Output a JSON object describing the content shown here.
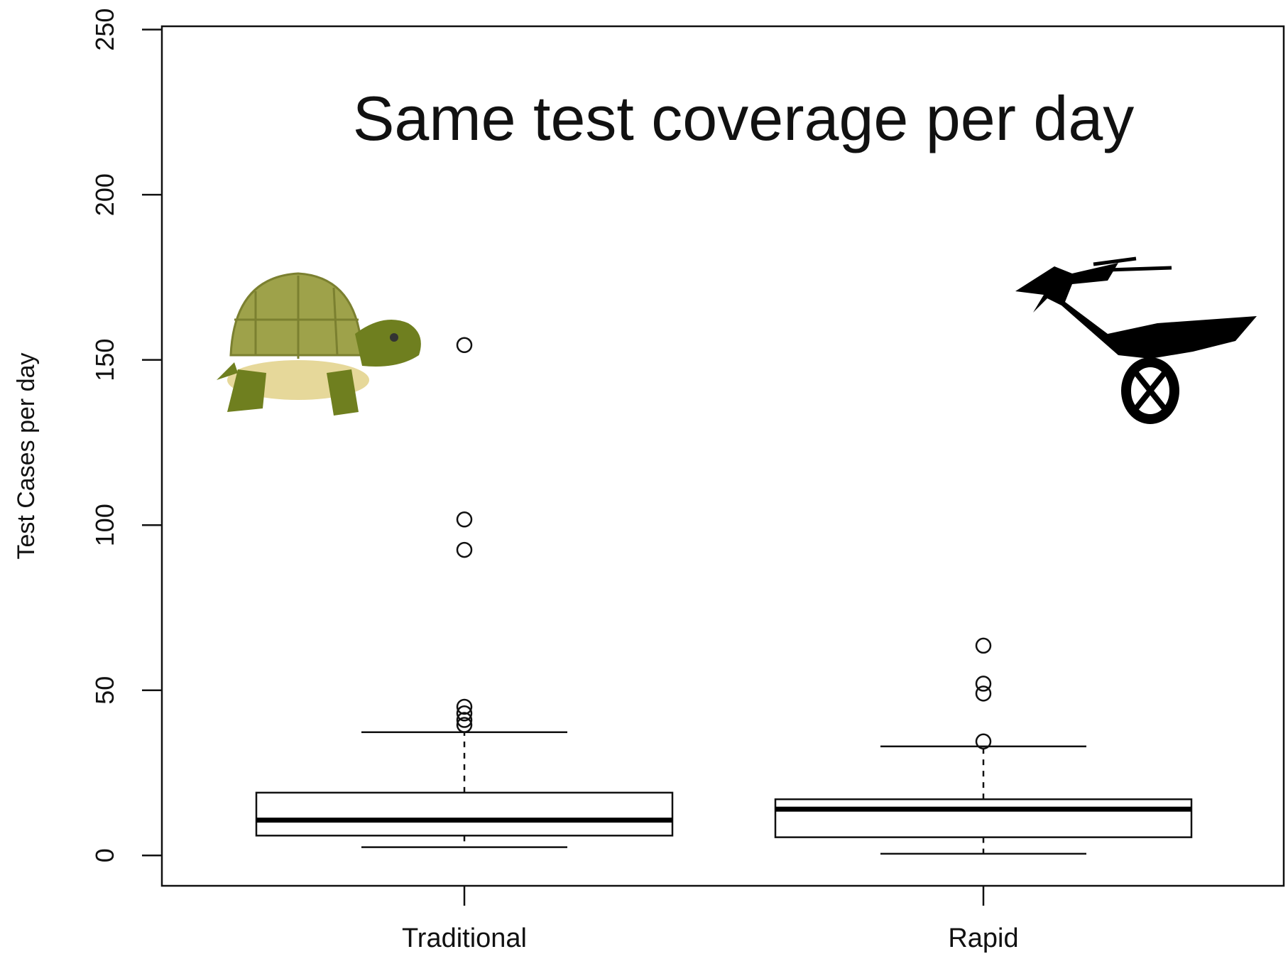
{
  "chart_data": {
    "type": "box",
    "annotation": "Same test coverage per day",
    "ylabel": "Test Cases per day",
    "categories": [
      "Traditional",
      "Rapid"
    ],
    "boxes": [
      {
        "whisker_low": 2.5,
        "q1": 6,
        "median": 10.7,
        "q3": 19,
        "whisker_high": 37.3,
        "outliers": [
          154.5,
          101.7,
          92.5,
          45,
          43,
          41,
          39.5
        ]
      },
      {
        "whisker_low": 0.5,
        "q1": 5.5,
        "median": 14,
        "q3": 17,
        "whisker_high": 33,
        "outliers": [
          63.5,
          52,
          49,
          34.5
        ]
      }
    ],
    "ylim": [
      -9.2,
      251
    ],
    "yticks": [
      0,
      50,
      100,
      150,
      200,
      250
    ]
  }
}
